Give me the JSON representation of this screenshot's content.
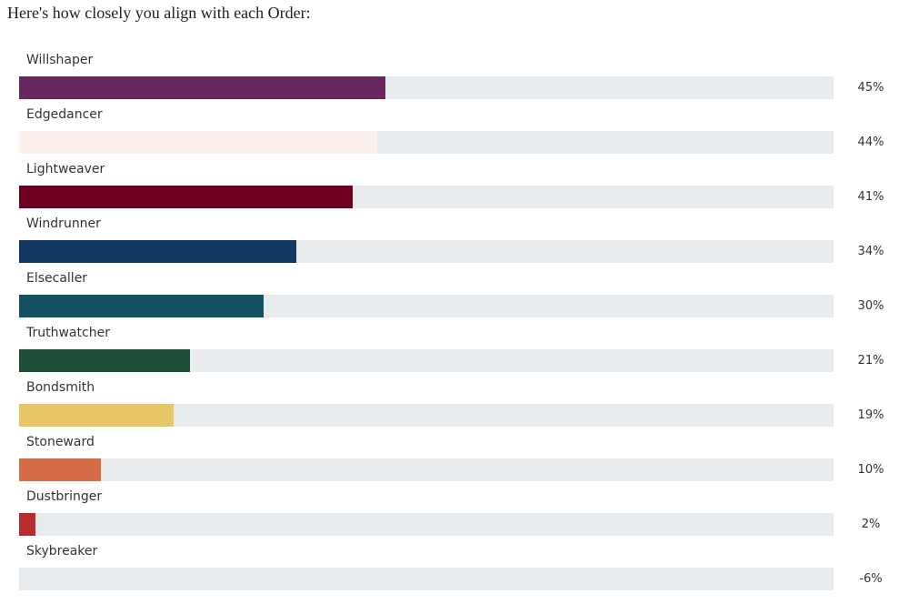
{
  "heading": "Here's how closely you align with each Order:",
  "chart_data": {
    "type": "bar",
    "orientation": "horizontal",
    "categories": [
      "Willshaper",
      "Edgedancer",
      "Lightweaver",
      "Windrunner",
      "Elsecaller",
      "Truthwatcher",
      "Bondsmith",
      "Stoneward",
      "Dustbringer",
      "Skybreaker"
    ],
    "values": [
      45,
      44,
      41,
      34,
      30,
      21,
      19,
      10,
      2,
      -6
    ],
    "value_labels": [
      "45%",
      "44%",
      "41%",
      "34%",
      "30%",
      "21%",
      "19%",
      "10%",
      "2%",
      "-6%"
    ],
    "colors": [
      "#68275f",
      "#fbf0ec",
      "#6b0020",
      "#123762",
      "#135062",
      "#1e4d38",
      "#e8c766",
      "#d56c45",
      "#b72a2e",
      "#e8ebee"
    ],
    "track_color": "#e8ebee",
    "xlim": [
      0,
      100
    ],
    "grid": false,
    "legend": "none"
  }
}
